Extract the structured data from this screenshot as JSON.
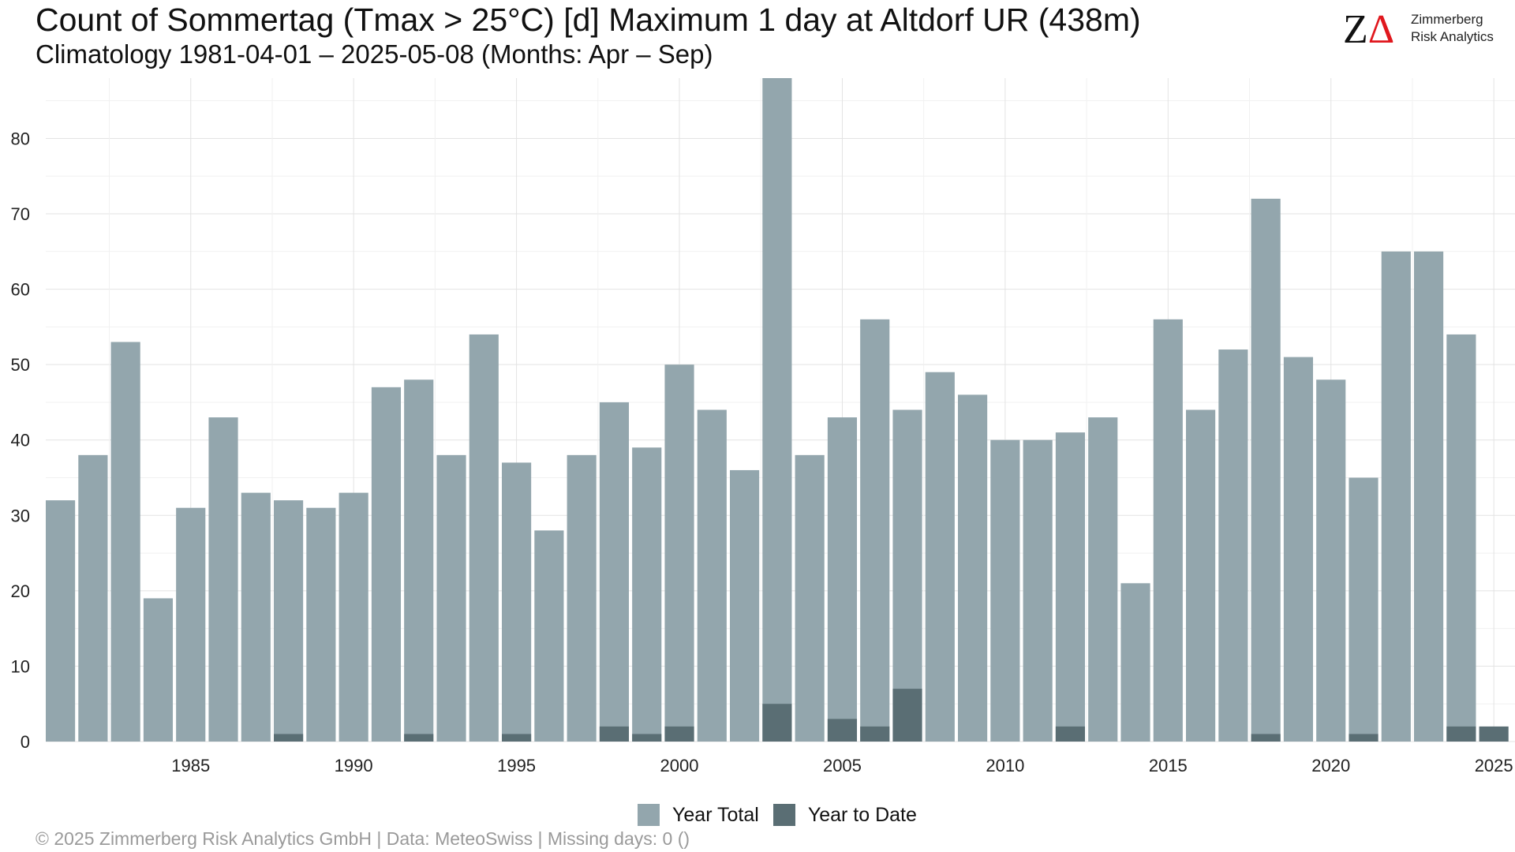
{
  "title": "Count of Sommertag (Tmax > 25°C) [d] Maximum 1 day at Altdorf  UR (438m)",
  "subtitle": "Climatology 1981-04-01 – 2025-05-08 (Months: Apr – Sep)",
  "logo": {
    "mark": "Z",
    "mark_delta": "Δ",
    "line1": "Zimmerberg",
    "line2": "Risk Analytics"
  },
  "caption": "©  2025 Zimmerberg Risk Analytics GmbH | Data: MeteoSwiss | Missing days: 0 ()",
  "colors": {
    "year_total": "#93a6ad",
    "year_to_date": "#5a6e74",
    "grid": "#e3e3e3"
  },
  "chart_data": {
    "type": "bar",
    "x": [
      1981,
      1982,
      1983,
      1984,
      1985,
      1986,
      1987,
      1988,
      1989,
      1990,
      1991,
      1992,
      1993,
      1994,
      1995,
      1996,
      1997,
      1998,
      1999,
      2000,
      2001,
      2002,
      2003,
      2004,
      2005,
      2006,
      2007,
      2008,
      2009,
      2010,
      2011,
      2012,
      2013,
      2014,
      2015,
      2016,
      2017,
      2018,
      2019,
      2020,
      2021,
      2022,
      2023,
      2024,
      2025
    ],
    "series": [
      {
        "name": "Year Total",
        "values": [
          32,
          38,
          53,
          19,
          31,
          43,
          33,
          32,
          31,
          33,
          47,
          48,
          38,
          54,
          37,
          28,
          38,
          45,
          39,
          50,
          44,
          36,
          88,
          38,
          43,
          56,
          44,
          49,
          46,
          40,
          40,
          41,
          43,
          21,
          56,
          44,
          52,
          72,
          51,
          48,
          35,
          65,
          65,
          54,
          0
        ]
      },
      {
        "name": "Year to Date",
        "values": [
          0,
          0,
          0,
          0,
          0,
          0,
          0,
          1,
          0,
          0,
          0,
          1,
          0,
          0,
          1,
          0,
          0,
          2,
          1,
          2,
          0,
          0,
          5,
          0,
          3,
          2,
          7,
          0,
          0,
          0,
          0,
          2,
          0,
          0,
          0,
          0,
          0,
          1,
          0,
          0,
          1,
          0,
          0,
          2,
          2
        ]
      }
    ],
    "x_ticks": [
      1985,
      1990,
      1995,
      2000,
      2005,
      2010,
      2015,
      2020,
      2025
    ],
    "y_ticks": [
      0,
      10,
      20,
      30,
      40,
      50,
      60,
      70,
      80
    ],
    "xlim": [
      1980.55,
      2025.65
    ],
    "ylim": [
      0,
      88
    ],
    "grid": true,
    "legend_position": "bottom"
  }
}
